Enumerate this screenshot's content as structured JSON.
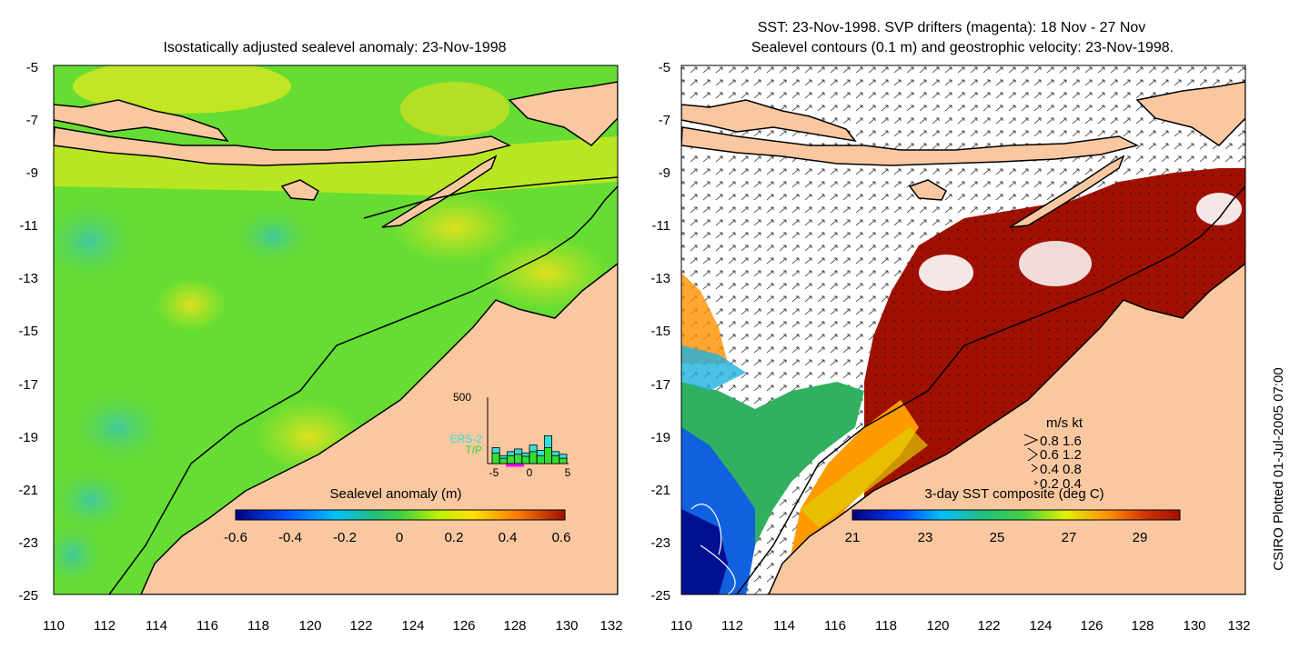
{
  "left_panel": {
    "title": "Isostatically adjusted sealevel anomaly: 23-Nov-1998",
    "colorbar_title": "Sealevel anomaly (m)",
    "colorbar_ticks": [
      "-0.6",
      "-0.4",
      "-0.2",
      "0",
      "0.2",
      "0.4",
      "0.6"
    ],
    "histogram": {
      "ymax_label": "500",
      "legend": [
        "ERS-2",
        "T/P"
      ],
      "x_ticks": [
        "-5",
        "0",
        "5"
      ],
      "ers2_color": "#33dddd",
      "tp_color": "#33dd33",
      "bars": [
        {
          "bin": -5,
          "ers2": 120,
          "tp": 80
        },
        {
          "bin": -4,
          "ers2": 60,
          "tp": 40
        },
        {
          "bin": -3,
          "ers2": 90,
          "tp": 60
        },
        {
          "bin": -2,
          "ers2": 110,
          "tp": 70
        },
        {
          "bin": -1,
          "ers2": 80,
          "tp": 55
        },
        {
          "bin": 0,
          "ers2": 140,
          "tp": 90
        },
        {
          "bin": 1,
          "ers2": 100,
          "tp": 60
        },
        {
          "bin": 2,
          "ers2": 210,
          "tp": 120
        },
        {
          "bin": 3,
          "ers2": 90,
          "tp": 60
        },
        {
          "bin": 4,
          "ers2": 70,
          "tp": 40
        }
      ]
    }
  },
  "right_panel": {
    "title_line1": "SST: 23-Nov-1998. SVP drifters (magenta): 18 Nov - 27 Nov",
    "title_line2": "Sealevel contours (0.1 m) and geostrophic velocity: 23-Nov-1998.",
    "colorbar_title": "3-day SST composite (deg C)",
    "colorbar_ticks": [
      "21",
      "23",
      "25",
      "27",
      "29"
    ],
    "velocity_legend": {
      "header": "m/s  kt",
      "rows": [
        "0.8  1.6",
        "0.6  1.2",
        "0.4  0.8",
        "0.2  0.4"
      ]
    }
  },
  "axes": {
    "x_ticks": [
      "110",
      "112",
      "114",
      "116",
      "118",
      "120",
      "122",
      "124",
      "126",
      "128",
      "130",
      "132"
    ],
    "y_ticks": [
      "-5",
      "-7",
      "-9",
      "-11",
      "-13",
      "-15",
      "-17",
      "-19",
      "-21",
      "-23",
      "-25"
    ]
  },
  "credit": "CSIRO Plotted 01-Jul-2005 07:00",
  "colors": {
    "land": "#fac8a0",
    "ocean_green": "#66dd33",
    "warm_sst": "#a01000",
    "cloud": "#ffffff"
  }
}
